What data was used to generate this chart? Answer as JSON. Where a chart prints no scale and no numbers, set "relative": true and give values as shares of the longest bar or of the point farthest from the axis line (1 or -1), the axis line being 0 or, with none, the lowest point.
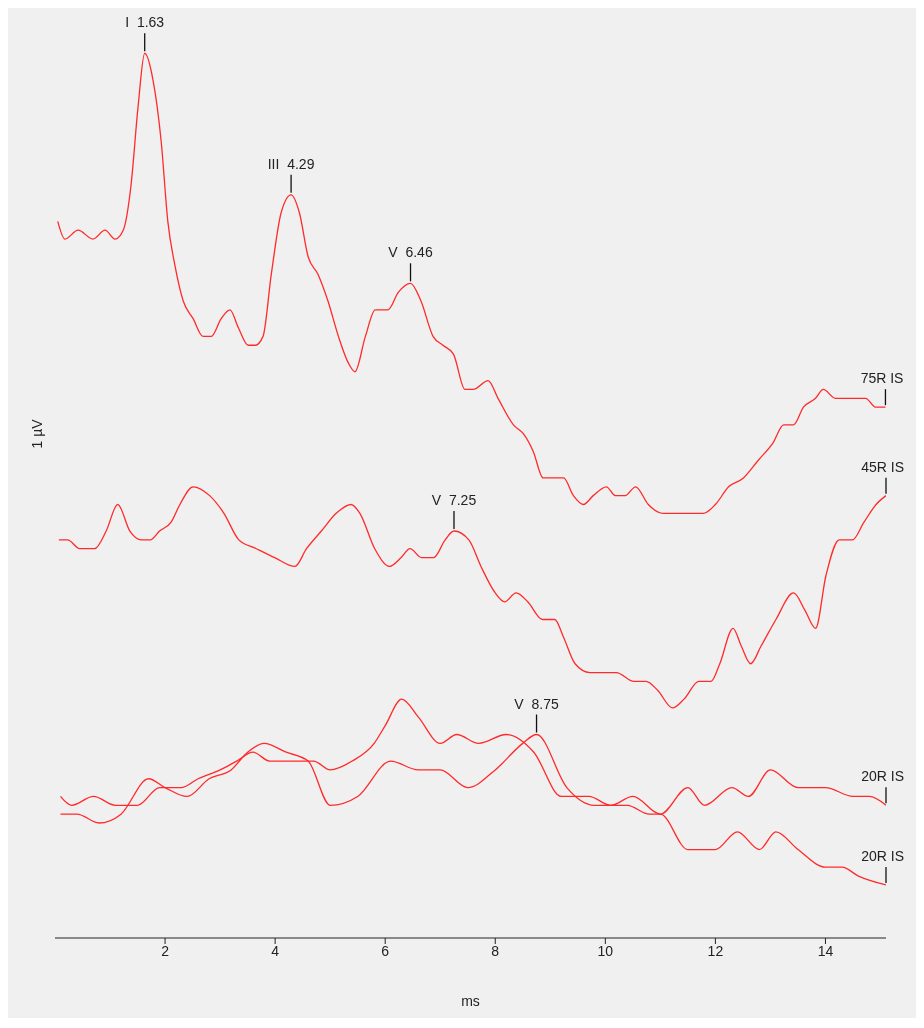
{
  "chart_data": {
    "type": "line",
    "relative": true,
    "xlabel": "ms",
    "ylabel": "1 µV",
    "xlim": [
      0,
      15.1
    ],
    "xticks": [
      2,
      4,
      6,
      8,
      10,
      12,
      14
    ],
    "tick_labels": "x",
    "marker": "none",
    "line_style": "solid",
    "series": [
      {
        "name": "75R IS",
        "color": "#ff2a2a",
        "x": [
          0.05,
          0.18,
          0.42,
          0.69,
          0.91,
          1.09,
          1.24,
          1.38,
          1.51,
          1.63,
          1.78,
          1.93,
          2.05,
          2.18,
          2.33,
          2.51,
          2.69,
          2.84,
          3.02,
          3.18,
          3.33,
          3.51,
          3.64,
          3.78,
          3.93,
          4.11,
          4.29,
          4.44,
          4.6,
          4.78,
          4.96,
          5.15,
          5.33,
          5.45,
          5.64,
          5.82,
          6.05,
          6.24,
          6.46,
          6.65,
          6.87,
          7.05,
          7.24,
          7.45,
          7.6,
          7.87,
          8.05,
          8.33,
          8.51,
          8.69,
          8.87,
          9.02,
          9.24,
          9.42,
          9.6,
          9.78,
          10.02,
          10.18,
          10.36,
          10.55,
          10.78,
          11.05,
          11.42,
          11.78,
          12,
          12.24,
          12.51,
          12.78,
          13.05,
          13.24,
          13.42,
          13.6,
          13.82,
          13.96,
          14.18,
          14.36,
          14.6,
          14.73,
          14.91,
          15.09
        ],
        "values": [
          0.81,
          0.79,
          0.8,
          0.79,
          0.8,
          0.79,
          0.8,
          0.85,
          0.94,
          1.0,
          0.97,
          0.9,
          0.81,
          0.76,
          0.72,
          0.7,
          0.68,
          0.68,
          0.7,
          0.71,
          0.69,
          0.67,
          0.67,
          0.68,
          0.75,
          0.82,
          0.84,
          0.82,
          0.77,
          0.75,
          0.72,
          0.68,
          0.65,
          0.64,
          0.68,
          0.71,
          0.71,
          0.73,
          0.74,
          0.72,
          0.68,
          0.67,
          0.66,
          0.62,
          0.62,
          0.63,
          0.61,
          0.58,
          0.57,
          0.55,
          0.52,
          0.52,
          0.52,
          0.5,
          0.49,
          0.5,
          0.51,
          0.5,
          0.5,
          0.51,
          0.49,
          0.48,
          0.48,
          0.48,
          0.49,
          0.51,
          0.52,
          0.54,
          0.56,
          0.58,
          0.58,
          0.6,
          0.61,
          0.62,
          0.61,
          0.61,
          0.61,
          0.61,
          0.6,
          0.6
        ]
      },
      {
        "name": "45R IS",
        "color": "#ff2a2a",
        "x": [
          0.07,
          0.23,
          0.45,
          0.72,
          0.93,
          1.14,
          1.36,
          1.57,
          1.73,
          1.9,
          2.11,
          2.27,
          2.51,
          2.81,
          3.07,
          3.34,
          3.66,
          3.99,
          4.36,
          4.57,
          4.84,
          5.11,
          5.38,
          5.54,
          5.81,
          6.08,
          6.29,
          6.45,
          6.66,
          6.88,
          7.09,
          7.25,
          7.52,
          7.74,
          8.0,
          8.17,
          8.38,
          8.59,
          8.86,
          9.08,
          9.24,
          9.45,
          9.72,
          9.99,
          10.2,
          10.52,
          10.74,
          10.95,
          11.22,
          11.43,
          11.7,
          11.92,
          12.08,
          12.32,
          12.47,
          12.64,
          12.83,
          13.1,
          13.42,
          13.63,
          13.82,
          14.01,
          14.25,
          14.49,
          14.7,
          14.92,
          15.1
        ],
        "values": [
          0.45,
          0.45,
          0.44,
          0.44,
          0.46,
          0.49,
          0.46,
          0.45,
          0.45,
          0.46,
          0.47,
          0.49,
          0.51,
          0.5,
          0.48,
          0.45,
          0.44,
          0.43,
          0.42,
          0.44,
          0.46,
          0.48,
          0.49,
          0.48,
          0.44,
          0.42,
          0.43,
          0.44,
          0.43,
          0.43,
          0.45,
          0.46,
          0.45,
          0.42,
          0.39,
          0.38,
          0.39,
          0.38,
          0.36,
          0.36,
          0.34,
          0.31,
          0.3,
          0.3,
          0.3,
          0.29,
          0.29,
          0.28,
          0.26,
          0.27,
          0.29,
          0.29,
          0.31,
          0.35,
          0.33,
          0.31,
          0.33,
          0.36,
          0.39,
          0.37,
          0.35,
          0.41,
          0.45,
          0.45,
          0.47,
          0.49,
          0.5
        ]
      },
      {
        "name": "20R IS",
        "color": "#ff2a2a",
        "x": [
          0.1,
          0.4,
          0.8,
          1.2,
          1.7,
          2.0,
          2.4,
          2.8,
          3.2,
          3.5,
          3.8,
          4.2,
          4.6,
          5.0,
          5.5,
          6.1,
          6.6,
          7.0,
          7.5,
          8.0,
          8.5,
          8.75,
          9.3,
          9.8,
          10.1,
          10.5,
          11.0,
          11.5,
          11.8,
          12.3,
          12.6,
          13.0,
          13.5,
          14.0,
          14.5,
          14.8,
          15.1
        ],
        "values": [
          0.14,
          0.14,
          0.13,
          0.14,
          0.18,
          0.17,
          0.16,
          0.18,
          0.19,
          0.21,
          0.22,
          0.21,
          0.2,
          0.15,
          0.16,
          0.2,
          0.19,
          0.19,
          0.17,
          0.19,
          0.22,
          0.23,
          0.17,
          0.15,
          0.15,
          0.16,
          0.14,
          0.17,
          0.15,
          0.17,
          0.16,
          0.19,
          0.17,
          0.17,
          0.16,
          0.16,
          0.15
        ]
      },
      {
        "name": "20R IS",
        "color": "#ff2a2a",
        "x": [
          0.1,
          0.3,
          0.7,
          1.1,
          1.5,
          1.9,
          2.3,
          2.6,
          3.0,
          3.3,
          3.6,
          3.9,
          4.3,
          4.7,
          5.0,
          5.4,
          5.8,
          6.0,
          6.3,
          6.6,
          7.0,
          7.3,
          7.7,
          8.2,
          8.7,
          9.2,
          9.7,
          10.1,
          10.4,
          10.8,
          11.0,
          11.5,
          12.0,
          12.4,
          12.8,
          13.1,
          13.5,
          14.0,
          14.3,
          14.6,
          15.1
        ],
        "values": [
          0.16,
          0.15,
          0.16,
          0.15,
          0.15,
          0.17,
          0.17,
          0.18,
          0.19,
          0.2,
          0.21,
          0.2,
          0.2,
          0.2,
          0.19,
          0.2,
          0.22,
          0.24,
          0.27,
          0.25,
          0.22,
          0.23,
          0.22,
          0.23,
          0.21,
          0.16,
          0.16,
          0.15,
          0.15,
          0.14,
          0.14,
          0.1,
          0.1,
          0.12,
          0.1,
          0.12,
          0.1,
          0.08,
          0.08,
          0.07,
          0.06
        ]
      }
    ],
    "annotations": [
      {
        "text": "I  1.63",
        "x": 1.63,
        "y": 1.0
      },
      {
        "text": "III  4.29",
        "x": 4.29,
        "y": 0.84
      },
      {
        "text": "V  6.46",
        "x": 6.46,
        "y": 0.74
      },
      {
        "text": "V  7.25",
        "x": 7.25,
        "y": 0.46
      },
      {
        "text": "V  8.75",
        "x": 8.75,
        "y": 0.23
      }
    ]
  }
}
